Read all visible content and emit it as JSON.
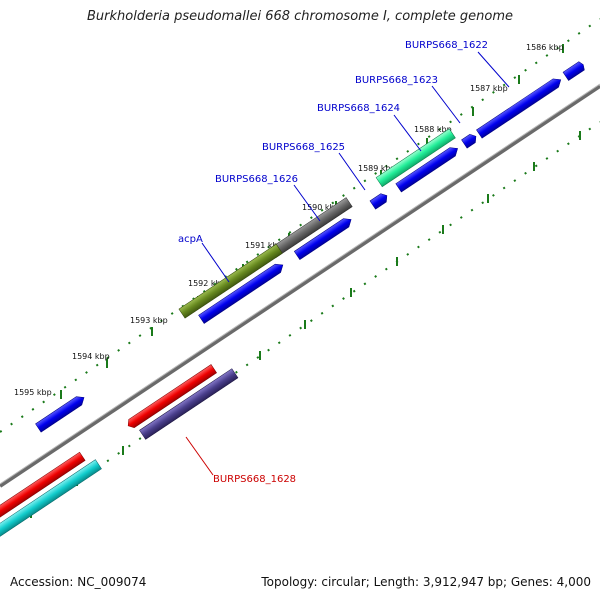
{
  "title": "Burkholderia pseudomallei 668 chromosome I, complete genome",
  "footer": {
    "accession": "Accession: NC_009074",
    "summary": "Topology: circular; Length: 3,912,947 bp; Genes: 4,000"
  },
  "kbp_ticks": [
    "1586 kbp",
    "1587 kbp",
    "1588 kbp",
    "1589 kbp",
    "1590 kbp",
    "1591 kbp",
    "1592 kbp",
    "1593 kbp",
    "1594 kbp",
    "1595 kbp"
  ],
  "gene_labels": {
    "BURPS668_1622": "BURPS668_1622",
    "BURPS668_1623": "BURPS668_1623",
    "BURPS668_1624": "BURPS668_1624",
    "BURPS668_1625": "BURPS668_1625",
    "BURPS668_1626": "BURPS668_1626",
    "acpA": "acpA",
    "BURPS668_1628": "BURPS668_1628"
  },
  "colors": {
    "label_blue": "#0000cc",
    "label_red": "#cc0000",
    "backbone": "#808080",
    "tick_green": "#1a7a1a",
    "cds_blue": "#0000ee",
    "cds_red": "#ee0000",
    "cds_cyan": "#11cccc",
    "cds_mint": "#22ee99",
    "cds_grey": "#666666",
    "cds_olive": "#66881f",
    "cds_slate": "#4a3f8c"
  }
}
